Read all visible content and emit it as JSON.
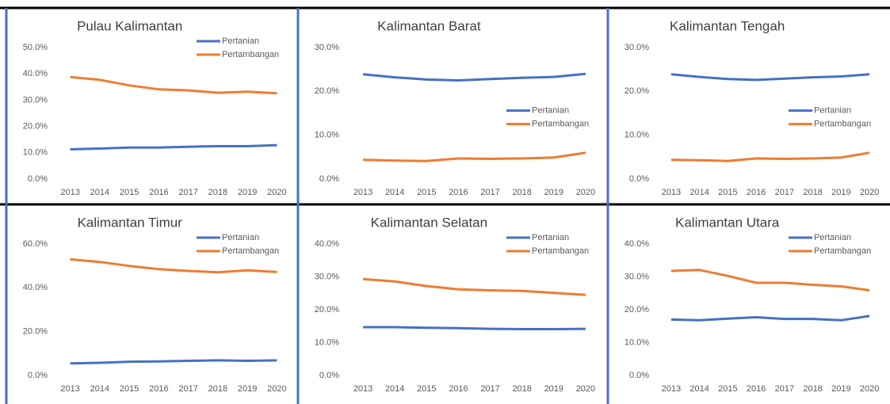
{
  "chart_data": [
    {
      "type": "line",
      "title": "Pulau Kalimantan",
      "legend": "upper right",
      "categories": [
        "2013",
        "2014",
        "2015",
        "2016",
        "2017",
        "2018",
        "2019",
        "2020"
      ],
      "series": [
        {
          "name": "Pertanian",
          "color": "#4472c4",
          "values": [
            11.3,
            11.6,
            12.0,
            12.0,
            12.3,
            12.5,
            12.5,
            12.9
          ]
        },
        {
          "name": "Pertambangan",
          "color": "#ed7d31",
          "values": [
            38.8,
            37.7,
            35.6,
            34.1,
            33.7,
            32.8,
            33.2,
            32.6
          ]
        }
      ],
      "ylim": [
        0,
        50
      ],
      "yticks": [
        {
          "value": 0,
          "label": "0.0%"
        },
        {
          "value": 10,
          "label": "10.0%"
        },
        {
          "value": 20,
          "label": "20.0%"
        },
        {
          "value": 30,
          "label": "30.0%"
        },
        {
          "value": 40,
          "label": "40.0%"
        },
        {
          "value": 50,
          "label": "50.0%"
        }
      ]
    },
    {
      "type": "line",
      "title": "Kalimantan Barat",
      "legend": "center right",
      "categories": [
        "2013",
        "2014",
        "2015",
        "2016",
        "2017",
        "2018",
        "2019",
        "2020"
      ],
      "series": [
        {
          "name": "Pertanian",
          "color": "#4472c4",
          "values": [
            23.9,
            23.2,
            22.7,
            22.5,
            22.8,
            23.1,
            23.3,
            24.0
          ]
        },
        {
          "name": "Pertambangan",
          "color": "#ed7d31",
          "values": [
            4.4,
            4.2,
            4.1,
            4.7,
            4.6,
            4.7,
            4.9,
            6.0
          ]
        }
      ],
      "ylim": [
        0,
        30
      ],
      "yticks": [
        {
          "value": 0,
          "label": "0.0%"
        },
        {
          "value": 10,
          "label": "10.0%"
        },
        {
          "value": 20,
          "label": "20.0%"
        },
        {
          "value": 30,
          "label": "30.0%"
        }
      ]
    },
    {
      "type": "line",
      "title": "Kalimantan Tengah",
      "legend": "center right",
      "categories": [
        "2013",
        "2014",
        "2015",
        "2016",
        "2017",
        "2018",
        "2019",
        "2020"
      ],
      "series": [
        {
          "name": "Pertanian",
          "color": "#4472c4",
          "values": [
            23.9,
            23.3,
            22.8,
            22.6,
            22.9,
            23.2,
            23.4,
            23.9
          ]
        },
        {
          "name": "Pertambangan",
          "color": "#ed7d31",
          "values": [
            4.4,
            4.3,
            4.1,
            4.7,
            4.6,
            4.7,
            4.9,
            6.0
          ]
        }
      ],
      "ylim": [
        0,
        30
      ],
      "yticks": [
        {
          "value": 0,
          "label": "0.0%"
        },
        {
          "value": 10,
          "label": "10.0%"
        },
        {
          "value": 20,
          "label": "20.0%"
        },
        {
          "value": 30,
          "label": "30.0%"
        }
      ]
    },
    {
      "type": "line",
      "title": "Kalimantan Timur",
      "legend": "upper right",
      "categories": [
        "2013",
        "2014",
        "2015",
        "2016",
        "2017",
        "2018",
        "2019",
        "2020"
      ],
      "series": [
        {
          "name": "Pertanian",
          "color": "#4472c4",
          "values": [
            5.5,
            5.8,
            6.3,
            6.4,
            6.7,
            6.9,
            6.7,
            6.9
          ]
        },
        {
          "name": "Pertambangan",
          "color": "#ed7d31",
          "values": [
            53.0,
            51.8,
            50.0,
            48.5,
            47.7,
            47.1,
            48.0,
            47.2
          ]
        }
      ],
      "ylim": [
        0,
        60
      ],
      "yticks": [
        {
          "value": 0,
          "label": "0.0%"
        },
        {
          "value": 20,
          "label": "20.0%"
        },
        {
          "value": 40,
          "label": "40.0%"
        },
        {
          "value": 60,
          "label": "60.0%"
        }
      ]
    },
    {
      "type": "line",
      "title": "Kalimantan Selatan",
      "legend": "upper right",
      "categories": [
        "2013",
        "2014",
        "2015",
        "2016",
        "2017",
        "2018",
        "2019",
        "2020"
      ],
      "series": [
        {
          "name": "Pertanian",
          "color": "#4472c4",
          "values": [
            14.7,
            14.7,
            14.5,
            14.4,
            14.2,
            14.1,
            14.1,
            14.2
          ]
        },
        {
          "name": "Pertambangan",
          "color": "#ed7d31",
          "values": [
            29.3,
            28.6,
            27.2,
            26.2,
            25.9,
            25.7,
            25.1,
            24.5
          ]
        }
      ],
      "ylim": [
        0,
        40
      ],
      "yticks": [
        {
          "value": 0,
          "label": "0.0%"
        },
        {
          "value": 10,
          "label": "10.0%"
        },
        {
          "value": 20,
          "label": "20.0%"
        },
        {
          "value": 30,
          "label": "30.0%"
        },
        {
          "value": 40,
          "label": "40.0%"
        }
      ]
    },
    {
      "type": "line",
      "title": "Kalimantan Utara",
      "legend": "upper right",
      "categories": [
        "2013",
        "2014",
        "2015",
        "2016",
        "2017",
        "2018",
        "2019",
        "2020"
      ],
      "series": [
        {
          "name": "Pertanian",
          "color": "#4472c4",
          "values": [
            17.0,
            16.8,
            17.3,
            17.7,
            17.2,
            17.2,
            16.8,
            18.1
          ]
        },
        {
          "name": "Pertambangan",
          "color": "#ed7d31",
          "values": [
            31.8,
            32.1,
            30.3,
            28.2,
            28.2,
            27.6,
            27.1,
            25.9
          ]
        }
      ],
      "ylim": [
        0,
        40
      ],
      "yticks": [
        {
          "value": 0,
          "label": "0.0%"
        },
        {
          "value": 10,
          "label": "10.0%"
        },
        {
          "value": 20,
          "label": "20.0%"
        },
        {
          "value": 30,
          "label": "30.0%"
        },
        {
          "value": 40,
          "label": "40.0%"
        }
      ]
    }
  ]
}
